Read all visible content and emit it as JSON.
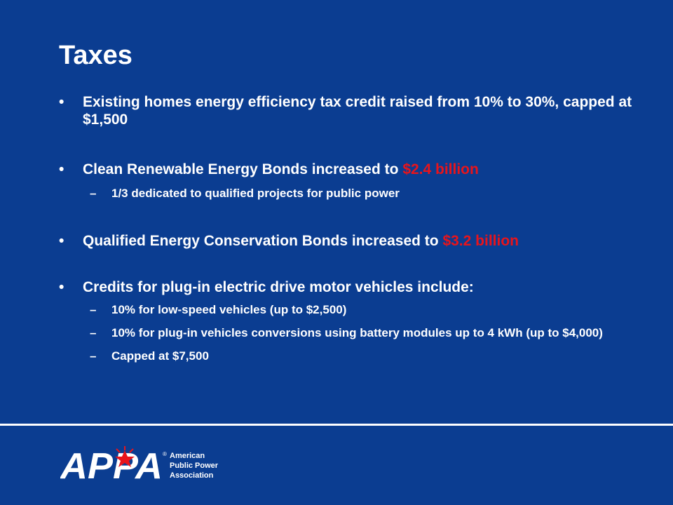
{
  "slide": {
    "title": "Taxes",
    "bullets": [
      {
        "parts": [
          "Existing homes energy efficiency tax credit raised from 10% to 30%, capped at $1,500"
        ],
        "subs": []
      },
      {
        "parts": [
          "Clean Renewable Energy Bonds increased to ",
          "$2.4 billion"
        ],
        "subs": [
          "1/3 dedicated to qualified projects for public power"
        ]
      },
      {
        "parts": [
          "Qualified Energy Conservation Bonds increased to ",
          "$3.2 billion"
        ],
        "subs": []
      },
      {
        "parts": [
          "Credits for plug-in electric drive motor vehicles include:"
        ],
        "subs": [
          "10% for low-speed vehicles (up to $2,500)",
          "10% for plug-in vehicles conversions using battery modules up to 4 kWh (up to $4,000)",
          "Capped at $7,500"
        ]
      }
    ],
    "bullet_symbol": "•",
    "sub_symbol": "–"
  },
  "logo": {
    "mark": "APPA",
    "registered": "®",
    "line1": "American",
    "line2": "Public Power",
    "line3": "Association"
  },
  "colors": {
    "background": "#0b3d91",
    "text": "#ffffff",
    "highlight": "#e8141b"
  }
}
